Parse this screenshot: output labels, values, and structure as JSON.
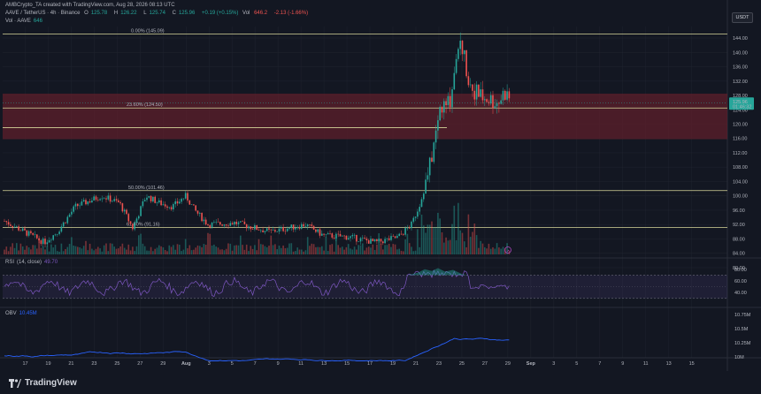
{
  "header": {
    "credit": "AMBCrypto_TA created with TradingView.com, Aug 28, 2026 08:13 UTC",
    "symbol": "AAVE / TetherUS · 4h · Binance",
    "ohlc": {
      "o_label": "O",
      "o": "125.78",
      "h_label": "H",
      "h": "126.22",
      "l_label": "L",
      "l": "125.74",
      "c_label": "C",
      "c": "125.96",
      "change": "+0.19 (+0.15%)",
      "vol_label": "Vol",
      "vol": "646.2",
      "change2": "-2.13 (-1.66%)"
    },
    "vol_line": "Vol · AAVE",
    "vol_line_value": "646"
  },
  "currency_button": "USDT",
  "fib_levels": [
    {
      "label": "0.00% (145.09)",
      "price": 145.09
    },
    {
      "label": "23.60% (124.50)",
      "price": 124.5
    },
    {
      "label": "50.00% (101.46)",
      "price": 101.46
    },
    {
      "label": "61.80% (91.16)",
      "price": 91.16
    }
  ],
  "support_line": 119.0,
  "zone": {
    "top": 128.5,
    "bottom": 115.8
  },
  "price_axis": [
    "144.00",
    "140.00",
    "136.00",
    "132.00",
    "128.00",
    "124.00",
    "120.00",
    "116.00",
    "112.00",
    "108.00",
    "104.00",
    "100.00",
    "96.00",
    "92.00",
    "88.00",
    "84.00",
    "80.00"
  ],
  "current_price": {
    "price": "125.96",
    "countdown": "01:46:32"
  },
  "rsi": {
    "label": "RSI",
    "params": "(14, close)",
    "value": "49.70",
    "axis": [
      "80.00",
      "60.00",
      "40.00"
    ]
  },
  "obv": {
    "label": "OBV",
    "value": "10.45M",
    "axis": [
      "10.75M",
      "10.5M",
      "10.25M",
      "10M"
    ]
  },
  "time_axis": [
    "17",
    "19",
    "21",
    "23",
    "25",
    "27",
    "29",
    "Aug",
    "3",
    "5",
    "7",
    "9",
    "11",
    "13",
    "15",
    "17",
    "19",
    "21",
    "23",
    "25",
    "27",
    "29",
    "Sep",
    "3",
    "5",
    "7",
    "9",
    "11",
    "13",
    "15"
  ],
  "colors": {
    "up": "#26a69a",
    "down": "#ef5350",
    "zone": "#5d1f2b",
    "fib": "#d7d79a",
    "rsi": "#7e57c2",
    "obv": "#2962ff",
    "bg": "#131722"
  },
  "brand": "TradingView"
}
